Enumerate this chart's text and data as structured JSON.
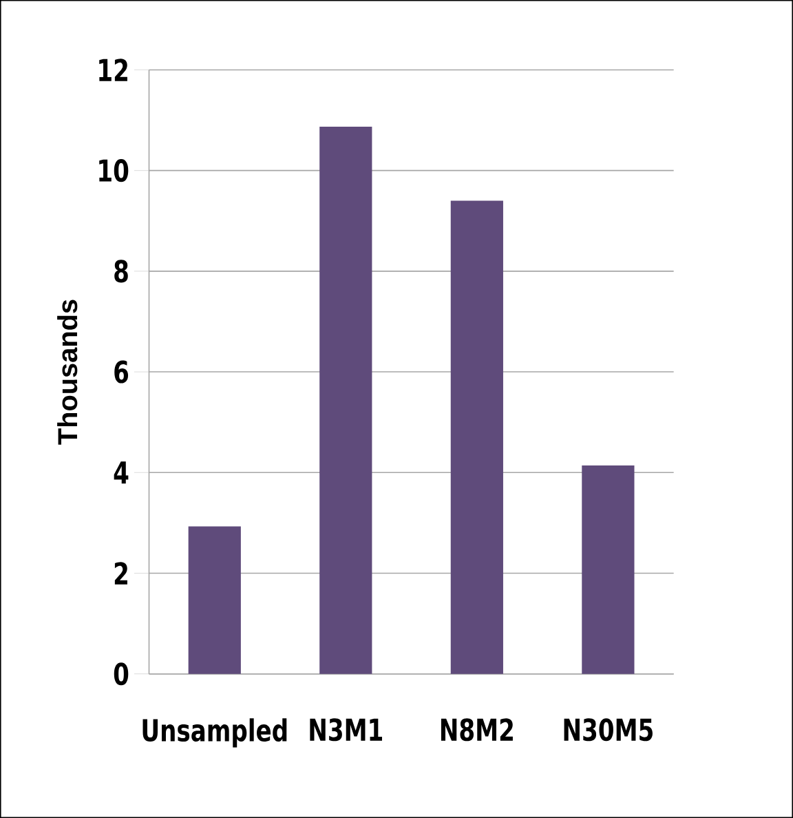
{
  "chart_data": {
    "type": "bar",
    "ylabel": "Thousands",
    "categories": [
      "Unsampled",
      "N3M1",
      "N8M2",
      "N30M5"
    ],
    "values": [
      2.93,
      10.87,
      9.4,
      4.14
    ],
    "color": "#5f4b7b",
    "ylim": [
      0,
      12
    ],
    "yticks": [
      0,
      2,
      4,
      6,
      8,
      10,
      12
    ],
    "grid": "y"
  }
}
